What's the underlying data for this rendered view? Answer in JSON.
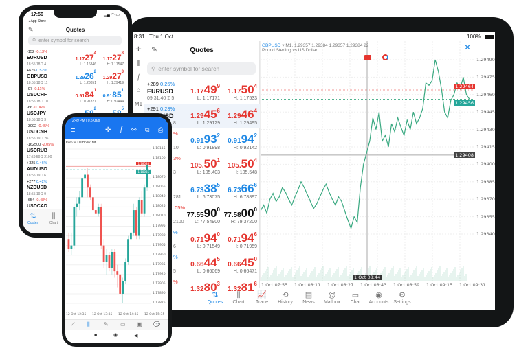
{
  "tablet": {
    "status": {
      "time": "8:31",
      "date": "Thu 1 Oct",
      "battery": "100%"
    },
    "toolbar": {
      "timeframe": "M1"
    },
    "quotes": {
      "title": "Quotes",
      "search_placeholder": "enter symbol for search",
      "rows": [
        {
          "change": "+289",
          "pct": "0.25%",
          "pct_color": "blue",
          "symbol": "EURUSD",
          "time": "09:31:40 ⌶ 5",
          "color": "red",
          "bid": {
            "p": "1.17",
            "b": "49",
            "s": "9"
          },
          "ask": {
            "p": "1.17",
            "b": "50",
            "s": "4"
          },
          "low": "L: 1.17171",
          "high": "H: 1.17533"
        },
        {
          "change": "+291",
          "pct": "0.23%",
          "pct_color": "blue",
          "symbol": "GBPUSD",
          "time": "8",
          "color": "red",
          "bid": {
            "p": "1.29",
            "b": "45",
            "s": "6"
          },
          "ask": {
            "p": "1.29",
            "b": "46",
            "s": "4"
          },
          "low": "L: 1.29129",
          "high": "H: 1.29495",
          "highlight": true
        },
        {
          "change": "",
          "pct": "%",
          "pct_color": "red",
          "symbol": "",
          "time": "10",
          "color": "blue",
          "bid": {
            "p": "0.91",
            "b": "93",
            "s": "2"
          },
          "ask": {
            "p": "0.91",
            "b": "94",
            "s": "2"
          },
          "low": "L: 0.91898",
          "high": "H: 0.92142"
        },
        {
          "change": "",
          "pct": "3%",
          "pct_color": "red",
          "symbol": "",
          "time": "3",
          "color": "red",
          "bid": {
            "p": "105.",
            "b": "50",
            "s": "1"
          },
          "ask": {
            "p": "105.",
            "b": "50",
            "s": "4"
          },
          "low": "L: 105.403",
          "high": "H: 105.548"
        },
        {
          "change": "",
          "pct": "",
          "pct_color": "red",
          "symbol": "",
          "time": "281",
          "color": "blue",
          "bid": {
            "p": "6.73",
            "b": "38",
            "s": "5"
          },
          "ask": {
            "p": "6.73",
            "b": "66",
            "s": "6"
          },
          "low": "L: 6.73075",
          "high": "H: 6.78897"
        },
        {
          "change": "",
          "pct": ".05%",
          "pct_color": "red",
          "symbol": "",
          "time": "2100",
          "color": "black",
          "bid": {
            "p": "77.55",
            "b": "90",
            "s": "0"
          },
          "ask": {
            "p": "77.58",
            "b": "00",
            "s": "0"
          },
          "low": "L: 77.54900",
          "high": "H: 79.37200"
        },
        {
          "change": "",
          "pct": "%",
          "pct_color": "blue",
          "symbol": "",
          "time": "6",
          "color": "red",
          "bid": {
            "p": "0.71",
            "b": "94",
            "s": "0"
          },
          "ask": {
            "p": "0.71",
            "b": "94",
            "s": "6"
          },
          "low": "L: 0.71549",
          "high": "H: 0.71959"
        },
        {
          "change": "",
          "pct": "%",
          "pct_color": "blue",
          "symbol": "",
          "time": "5",
          "color": "red",
          "bid": {
            "p": "0.66",
            "b": "44",
            "s": "5"
          },
          "ask": {
            "p": "0.66",
            "b": "45",
            "s": "0"
          },
          "low": "L: 0.66069",
          "high": "H: 0.66471"
        },
        {
          "change": "",
          "pct": "%",
          "pct_color": "red",
          "symbol": "",
          "time": "",
          "color": "red",
          "bid": {
            "p": "1.32",
            "b": "80",
            "s": "3"
          },
          "ask": {
            "p": "1.32",
            "b": "81",
            "s": "6"
          },
          "low": "",
          "high": ""
        }
      ]
    },
    "chart": {
      "symbol": "GBPUSD",
      "ohlc_line": "▾ M1, 1.29357 1.29384 1.29357 1.29384 22",
      "description": "Pound Sterling vs US Dollar",
      "price_ticks": [
        "1.29490",
        "1.29475",
        "1.29460",
        "1.29445",
        "1.29430",
        "1.29415",
        "1.29400",
        "1.29385",
        "1.29370",
        "1.29355",
        "1.29340"
      ],
      "ask_tag": "1.29464",
      "bid_tag": "1.29456",
      "cursor_price": "1.29408",
      "time_ticks": [
        "1 Oct 07:55",
        "1 Oct 08:11",
        "1 Oct 08:27",
        "1 Oct 08:43",
        "1 Oct 08:59",
        "1 Oct 09:15",
        "1 Oct 09:31"
      ],
      "cursor_time": "1 Oct 08:44",
      "line_color": "#3aa981",
      "values": [
        1.2936,
        1.29365,
        1.29358,
        1.2937,
        1.29375,
        1.29368,
        1.29372,
        1.2938,
        1.29376,
        1.2937,
        1.29365,
        1.29372,
        1.29378,
        1.29385,
        1.2938,
        1.29374,
        1.29368,
        1.29362,
        1.29366,
        1.29372,
        1.29378,
        1.29383,
        1.29376,
        1.2937,
        1.29365,
        1.29372,
        1.29368,
        1.2936,
        1.29352,
        1.29345,
        1.29355,
        1.2935,
        1.2938,
        1.294,
        1.2941,
        1.2942,
        1.2944,
        1.2943,
        1.29445,
        1.2942,
        1.29425,
        1.29415,
        1.29435,
        1.29428,
        1.2944,
        1.29432,
        1.29425,
        1.29438,
        1.2943,
        1.29445,
        1.29435,
        1.2944,
        1.29448,
        1.2947,
        1.29468,
        1.29472,
        1.2949,
        1.2948,
        1.29465,
        1.29445,
        1.2944,
        1.29455,
        1.2946,
        1.2947,
        1.29465,
        1.29475,
        1.2946,
        1.29456
      ]
    },
    "nav": [
      {
        "label": "Quotes",
        "icon": "⇅",
        "active": true
      },
      {
        "label": "Chart",
        "icon": "⫼"
      },
      {
        "label": "Trade",
        "icon": "📈"
      },
      {
        "label": "History",
        "icon": "⟲"
      },
      {
        "label": "News",
        "icon": "▤"
      },
      {
        "label": "Mailbox",
        "icon": "@"
      },
      {
        "label": "Chat",
        "icon": "▭"
      },
      {
        "label": "Accounts",
        "icon": "◉"
      },
      {
        "label": "Settings",
        "icon": "⚙"
      }
    ]
  },
  "iphone": {
    "status_time": "17:56",
    "back_label": "◂ App Store",
    "title": "Quotes",
    "search_placeholder": "enter symbol for search",
    "rows": [
      {
        "change": "-152",
        "pct": "-0.13%",
        "pct_color": "red",
        "symbol": "EURUSD",
        "time": "18:55:18 ⌶ 4",
        "bid_color": "red",
        "ask_color": "red",
        "bid": {
          "p": "1.17",
          "b": "27",
          "s": "4"
        },
        "ask": {
          "p": "1.17",
          "b": "27",
          "s": "8"
        },
        "low": "L: 1.16846",
        "high": "H: 1.17547"
      },
      {
        "change": "+675",
        "pct": "0.52%",
        "pct_color": "blue",
        "symbol": "GBPUSD",
        "time": "18:55:18 ⌶ 11",
        "bid_color": "blue",
        "ask_color": "red",
        "bid": {
          "p": "1.29",
          "b": "26",
          "s": "2"
        },
        "ask": {
          "p": "1.29",
          "b": "27",
          "s": "3"
        },
        "low": "L: 1.28051",
        "high": "H: 1.29419"
      },
      {
        "change": "-97",
        "pct": "-0.11%",
        "pct_color": "red",
        "symbol": "USDCHF",
        "time": "18:55:18 ⌶ 10",
        "bid_color": "red",
        "ask_color": "blue",
        "bid": {
          "p": "0.91",
          "b": "84",
          "s": "1"
        },
        "ask": {
          "p": "0.91",
          "b": "85",
          "s": "1"
        },
        "low": "L: 0.91821",
        "high": "H: 0.92444"
      },
      {
        "change": "-66",
        "pct": "-0.06%",
        "pct_color": "red",
        "symbol": "USDJPY",
        "time": "18:55:18 ⌶ 3",
        "bid_color": "blue",
        "ask_color": "blue",
        "bid": {
          "p": "105.",
          "b": "58",
          "s": "2"
        },
        "ask": {
          "p": "105.",
          "b": "58",
          "s": "5"
        },
        "low": "",
        "high": ""
      },
      {
        "change": "-3092",
        "pct": "-0.45%",
        "pct_color": "red",
        "symbol": "USDCNH",
        "time": "18:55:19 ⌶ 287"
      },
      {
        "change": "-162500",
        "pct": "-2.05%",
        "pct_color": "red",
        "symbol": "USDRUB",
        "time": "17:59:59 ⌶ 2100"
      },
      {
        "change": "+325",
        "pct": "0.46%",
        "pct_color": "blue",
        "symbol": "AUDUSD",
        "time": "18:55:19 ⌶ 6"
      },
      {
        "change": "+277",
        "pct": "0.42%",
        "pct_color": "blue",
        "symbol": "NZDUSD",
        "time": "18:55:19 ⌶ 9"
      },
      {
        "change": "-654",
        "pct": "-0.48%",
        "pct_color": "red",
        "symbol": "USDCAD",
        "time": ""
      }
    ],
    "tabs": [
      {
        "label": "Quotes",
        "icon": "⇅",
        "active": true
      },
      {
        "label": "Chart",
        "icon": "⫼"
      }
    ]
  },
  "android": {
    "status": "2:49 PM | 0.5KB/s",
    "chart_title": "Euro vs US Dollar, M5",
    "price_ticks": [
      "1.18115",
      "1.18100",
      "1.18070",
      "1.18055",
      "1.18040",
      "1.18025",
      "1.18010",
      "1.17995",
      "1.17980",
      "1.17965",
      "1.17950",
      "1.17935",
      "1.17920",
      "1.17905",
      "1.17890",
      "1.17875"
    ],
    "ask_tag": "1.18088",
    "bid_tag": "1.18085",
    "time_ticks": [
      "12 Oct 12:35",
      "12 Oct 13:35",
      "12 Oct 14:35",
      "12 Oct 15:35"
    ],
    "up_color": "#26a69a",
    "down_color": "#ef5350",
    "candles": [
      [
        1.17975,
        1.17985,
        1.17955,
        1.1796
      ],
      [
        1.1796,
        1.17985,
        1.1795,
        1.17965
      ],
      [
        1.17965,
        1.1803,
        1.1796,
        1.18025
      ],
      [
        1.18025,
        1.1804,
        1.1801,
        1.1803
      ],
      [
        1.1803,
        1.1805,
        1.1802,
        1.1804
      ],
      [
        1.1804,
        1.18075,
        1.18035,
        1.1807
      ],
      [
        1.1807,
        1.1809,
        1.1806,
        1.18075
      ],
      [
        1.18075,
        1.18085,
        1.1804,
        1.18055
      ],
      [
        1.18055,
        1.1806,
        1.18035,
        1.1804
      ],
      [
        1.1804,
        1.1805,
        1.1801,
        1.1802
      ],
      [
        1.1802,
        1.1803,
        1.1801,
        1.18015
      ],
      [
        1.18015,
        1.1803,
        1.1801,
        1.18025
      ],
      [
        1.18025,
        1.1803,
        1.1796,
        1.17965
      ],
      [
        1.17965,
        1.17975,
        1.1793,
        1.1794
      ],
      [
        1.1794,
        1.1796,
        1.1792,
        1.1795
      ],
      [
        1.1795,
        1.17955,
        1.17925,
        1.1793
      ],
      [
        1.1793,
        1.1796,
        1.1792,
        1.17955
      ],
      [
        1.17955,
        1.1796,
        1.17915,
        1.17925
      ],
      [
        1.17925,
        1.17935,
        1.179,
        1.1792
      ],
      [
        1.1792,
        1.1793,
        1.1788,
        1.1789
      ],
      [
        1.1789,
        1.17915,
        1.17875,
        1.1791
      ],
      [
        1.1791,
        1.17945,
        1.17905,
        1.1794
      ],
      [
        1.1794,
        1.1798,
        1.17935,
        1.17975
      ],
      [
        1.17975,
        1.1799,
        1.17965,
        1.17985
      ],
      [
        1.17985,
        1.1803,
        1.1798,
        1.1802
      ],
      [
        1.1802,
        1.18025,
        1.17975,
        1.1798
      ],
      [
        1.1798,
        1.1804,
        1.17975,
        1.18035
      ],
      [
        1.18035,
        1.1805,
        1.1801,
        1.18015
      ],
      [
        1.18015,
        1.1806,
        1.1801,
        1.18055
      ],
      [
        1.18055,
        1.18095,
        1.1805,
        1.1809
      ]
    ],
    "bottom_tools": [
      "⟋",
      "⫼",
      "✎",
      "▭",
      "▣",
      "💬"
    ]
  }
}
